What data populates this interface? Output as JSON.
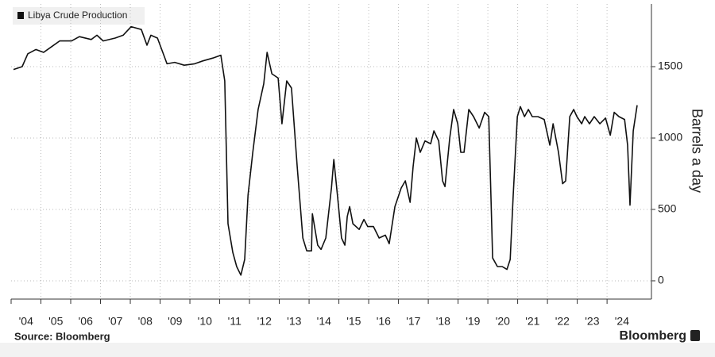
{
  "chart_data": {
    "type": "line",
    "legend_title": "Libya Crude Production",
    "y_label": "Barrels a day",
    "source": "Source: Bloomberg",
    "brand": "Bloomberg",
    "x": [
      2004.08,
      2004.37,
      2004.56,
      2004.83,
      2005.09,
      2005.36,
      2005.63,
      2006.03,
      2006.29,
      2006.69,
      2006.88,
      2007.09,
      2007.49,
      2007.76,
      2008.03,
      2008.37,
      2008.56,
      2008.69,
      2008.91,
      2009.09,
      2009.23,
      2009.49,
      2009.81,
      2010.16,
      2010.43,
      2010.77,
      2011.04,
      2011.17,
      2011.28,
      2011.44,
      2011.57,
      2011.71,
      2011.84,
      2011.95,
      2012.11,
      2012.29,
      2012.48,
      2012.59,
      2012.75,
      2012.96,
      2013.09,
      2013.25,
      2013.41,
      2013.6,
      2013.79,
      2013.92,
      2014.08,
      2014.11,
      2014.29,
      2014.4,
      2014.56,
      2014.75,
      2014.83,
      2014.96,
      2015.09,
      2015.2,
      2015.28,
      2015.36,
      2015.47,
      2015.68,
      2015.84,
      2015.97,
      2016.16,
      2016.35,
      2016.56,
      2016.69,
      2016.88,
      2017.09,
      2017.23,
      2017.39,
      2017.49,
      2017.6,
      2017.73,
      2017.89,
      2018.08,
      2018.19,
      2018.35,
      2018.48,
      2018.56,
      2018.72,
      2018.85,
      2018.99,
      2019.09,
      2019.2,
      2019.36,
      2019.52,
      2019.71,
      2019.89,
      2020.03,
      2020.16,
      2020.32,
      2020.48,
      2020.64,
      2020.75,
      2020.85,
      2020.99,
      2021.09,
      2021.23,
      2021.36,
      2021.49,
      2021.68,
      2021.89,
      2022.08,
      2022.19,
      2022.37,
      2022.51,
      2022.61,
      2022.75,
      2022.88,
      2022.99,
      2023.15,
      2023.25,
      2023.41,
      2023.57,
      2023.76,
      2023.95,
      2024.11,
      2024.24,
      2024.4,
      2024.59,
      2024.69,
      2024.77,
      2024.88,
      2025.01
    ],
    "series": [
      {
        "name": "Libya Crude Production",
        "color": "#111111",
        "values": [
          1480,
          1500,
          1590,
          1620,
          1600,
          1640,
          1680,
          1680,
          1710,
          1690,
          1720,
          1680,
          1700,
          1720,
          1780,
          1760,
          1650,
          1720,
          1700,
          1600,
          1520,
          1530,
          1510,
          1520,
          1540,
          1560,
          1580,
          1400,
          400,
          200,
          100,
          40,
          150,
          600,
          900,
          1200,
          1380,
          1600,
          1450,
          1420,
          1100,
          1400,
          1350,
          800,
          300,
          210,
          210,
          470,
          250,
          220,
          300,
          650,
          850,
          580,
          300,
          250,
          450,
          520,
          400,
          360,
          430,
          380,
          380,
          300,
          320,
          260,
          520,
          650,
          700,
          550,
          800,
          1000,
          900,
          980,
          960,
          1050,
          980,
          700,
          660,
          1000,
          1200,
          1100,
          900,
          900,
          1200,
          1150,
          1070,
          1180,
          1150,
          160,
          100,
          100,
          80,
          150,
          600,
          1150,
          1220,
          1150,
          1200,
          1150,
          1150,
          1130,
          950,
          1100,
          900,
          680,
          700,
          1150,
          1200,
          1150,
          1100,
          1150,
          1100,
          1150,
          1100,
          1140,
          1020,
          1180,
          1150,
          1130,
          950,
          530,
          1050,
          1230
        ]
      }
    ],
    "xlim": [
      2004,
      2025.49
    ],
    "xticks": [
      {
        "value": 2004,
        "label": "'04"
      },
      {
        "value": 2005,
        "label": "'05"
      },
      {
        "value": 2006,
        "label": "'06"
      },
      {
        "value": 2007,
        "label": "'07"
      },
      {
        "value": 2008,
        "label": "'08"
      },
      {
        "value": 2009,
        "label": "'09"
      },
      {
        "value": 2010,
        "label": "'10"
      },
      {
        "value": 2011,
        "label": "'11"
      },
      {
        "value": 2012,
        "label": "'12"
      },
      {
        "value": 2013,
        "label": "'13"
      },
      {
        "value": 2014,
        "label": "'14"
      },
      {
        "value": 2015,
        "label": "'15"
      },
      {
        "value": 2016,
        "label": "'16"
      },
      {
        "value": 2017,
        "label": "'17"
      },
      {
        "value": 2018,
        "label": "'18"
      },
      {
        "value": 2019,
        "label": "'19"
      },
      {
        "value": 2020,
        "label": "'20"
      },
      {
        "value": 2021,
        "label": "'21"
      },
      {
        "value": 2022,
        "label": "'22"
      },
      {
        "value": 2023,
        "label": "'23"
      },
      {
        "value": 2024,
        "label": "'24"
      }
    ],
    "ylim": [
      -128,
      1939
    ],
    "yticks": [
      0,
      500,
      {
        "value": 1000,
        "label": "1000"
      },
      {
        "value": 1500,
        "label": "1500"
      }
    ],
    "grid": true
  }
}
